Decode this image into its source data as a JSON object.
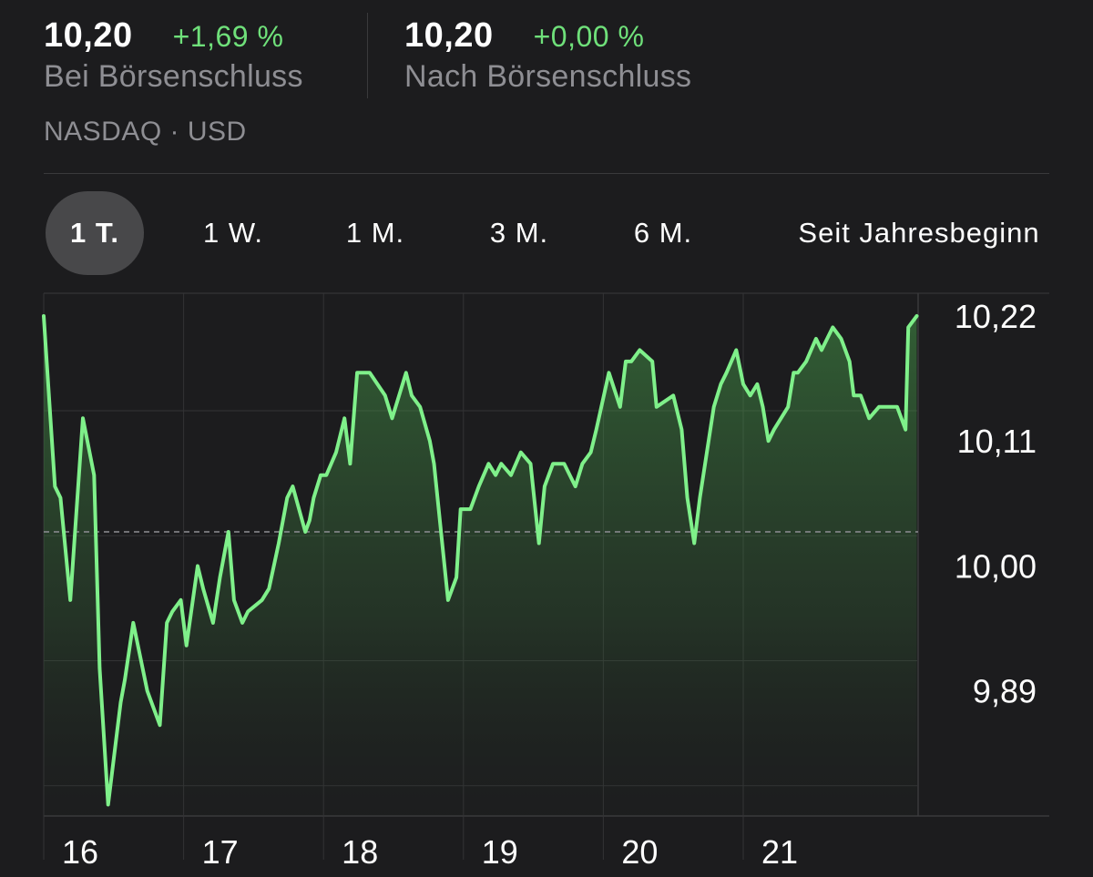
{
  "quote": {
    "close_price": "10,20",
    "close_change": "+1,69 %",
    "close_label": "Bei Börsenschluss",
    "after_price": "10,20",
    "after_change": "+0,00 %",
    "after_label": "Nach Börsenschluss",
    "exchange": "NASDAQ · USD"
  },
  "range_tabs": [
    {
      "label": "1 T.",
      "active": true
    },
    {
      "label": "1 W.",
      "active": false
    },
    {
      "label": "1 M.",
      "active": false
    },
    {
      "label": "3 M.",
      "active": false
    },
    {
      "label": "6 M.",
      "active": false
    },
    {
      "label": "Seit Jahresbeginn",
      "active": false
    }
  ],
  "colors": {
    "background": "#1c1c1e",
    "positive": "#6fe07a",
    "secondary_text": "#8e8e93",
    "grid": "#3a3a3c"
  },
  "chart_data": {
    "type": "area",
    "x_tick_labels": [
      "16",
      "17",
      "18",
      "19",
      "20",
      "21"
    ],
    "y_tick_labels": [
      "10,22",
      "10,11",
      "10,00",
      "9,89"
    ],
    "y_ticks": [
      10.22,
      10.11,
      10.0,
      9.89
    ],
    "ylim": [
      9.78,
      10.24
    ],
    "reference_value": 10.03,
    "x_range": [
      15.5,
      21.75
    ],
    "series": [
      {
        "x": [
          15.5,
          15.58,
          15.62,
          15.69,
          15.78,
          15.86,
          15.9,
          15.96,
          16.05,
          16.08,
          16.14,
          16.24,
          16.33,
          16.38,
          16.42,
          16.48,
          16.52,
          16.6,
          16.64,
          16.71,
          16.76,
          16.82,
          16.86,
          16.92,
          16.96,
          17.06,
          17.11,
          17.18,
          17.24,
          17.28,
          17.37,
          17.4,
          17.43,
          17.48,
          17.52,
          17.59,
          17.65,
          17.69,
          17.74,
          17.79,
          17.83,
          17.94,
          17.99,
          18.09,
          18.13,
          18.19,
          18.26,
          18.29,
          18.39,
          18.45,
          18.48,
          18.55,
          18.61,
          18.68,
          18.73,
          18.77,
          18.84,
          18.91,
          18.98,
          19.04,
          19.08,
          19.14,
          19.22,
          19.3,
          19.35,
          19.41,
          19.45,
          19.54,
          19.62,
          19.66,
          19.7,
          19.76,
          19.85,
          19.88,
          20.0,
          20.06,
          20.1,
          20.15,
          20.19,
          20.29,
          20.34,
          20.38,
          20.45,
          20.5,
          20.55,
          20.6,
          20.64,
          20.68,
          20.72,
          20.82,
          20.86,
          20.89,
          20.95,
          21.02,
          21.06,
          21.14,
          21.2,
          21.26,
          21.29,
          21.34,
          21.4,
          21.47,
          21.55,
          21.6,
          21.66,
          21.68,
          21.74
        ],
        "y": [
          10.22,
          10.07,
          10.06,
          9.97,
          10.13,
          10.08,
          9.91,
          9.79,
          9.88,
          9.9,
          9.95,
          9.89,
          9.86,
          9.95,
          9.96,
          9.97,
          9.93,
          10.0,
          9.98,
          9.95,
          9.99,
          10.03,
          9.97,
          9.95,
          9.96,
          9.97,
          9.98,
          10.02,
          10.06,
          10.07,
          10.03,
          10.04,
          10.06,
          10.08,
          10.08,
          10.1,
          10.13,
          10.09,
          10.17,
          10.17,
          10.17,
          10.15,
          10.13,
          10.17,
          10.15,
          10.14,
          10.11,
          10.09,
          9.97,
          9.99,
          10.05,
          10.05,
          10.07,
          10.09,
          10.08,
          10.09,
          10.08,
          10.1,
          10.09,
          10.02,
          10.07,
          10.09,
          10.09,
          10.07,
          10.09,
          10.1,
          10.12,
          10.17,
          10.14,
          10.18,
          10.18,
          10.19,
          10.18,
          10.14,
          10.15,
          10.12,
          10.06,
          10.02,
          10.06,
          10.14,
          10.16,
          10.17,
          10.19,
          10.16,
          10.15,
          10.16,
          10.14,
          10.11,
          10.12,
          10.14,
          10.17,
          10.17,
          10.18,
          10.2,
          10.19,
          10.21,
          10.2,
          10.18,
          10.15,
          10.15,
          10.13,
          10.14,
          10.14,
          10.14,
          10.12,
          10.21,
          10.22
        ]
      }
    ]
  }
}
